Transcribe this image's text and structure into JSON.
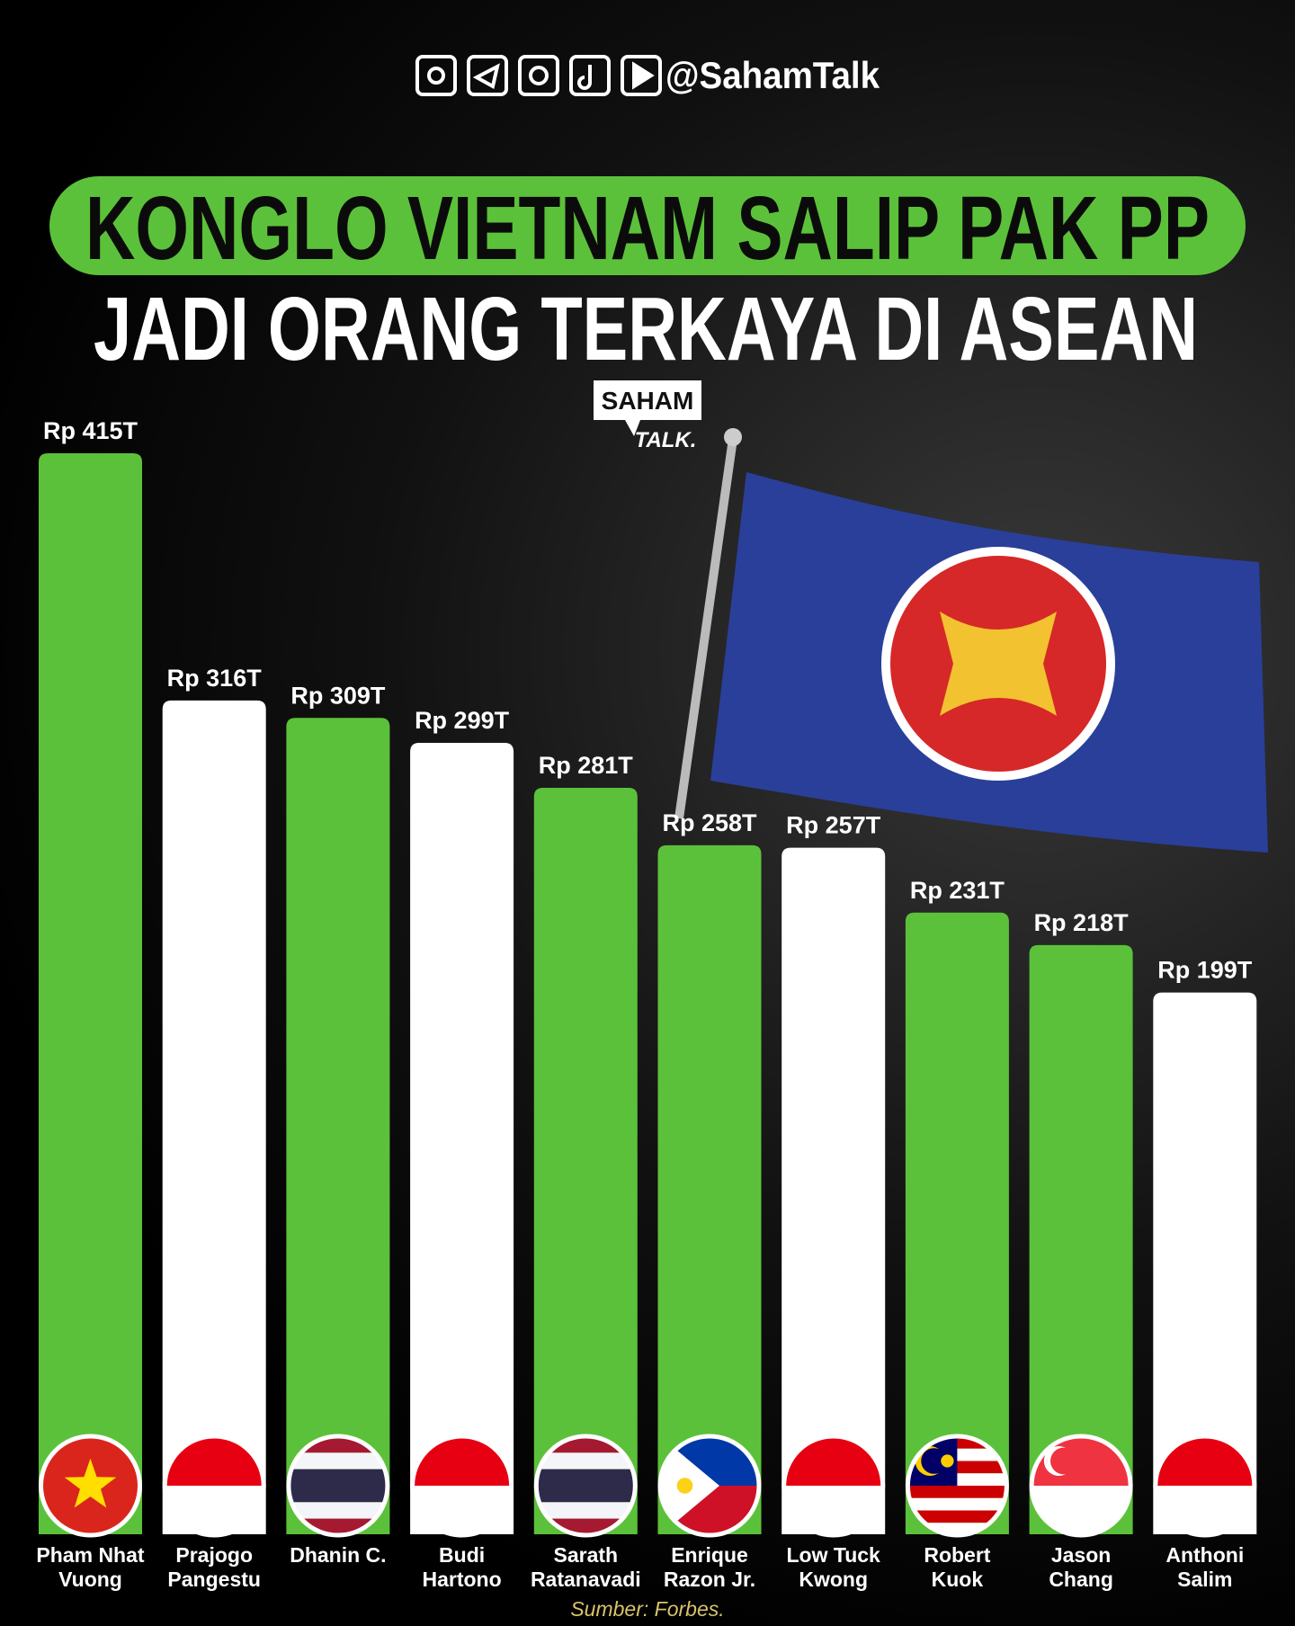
{
  "header": {
    "handle": "@SahamTalk"
  },
  "logo": {
    "line1": "SAHAM",
    "line2": "TALK."
  },
  "chart_data": {
    "type": "bar",
    "title": "KONGLO VIETNAM SALIP PAK PP",
    "subtitle": "JADI ORANG TERKAYA DI ASEAN",
    "categories": [
      "Pham Nhat Vuong",
      "Prajogo Pangestu",
      "Dhanin C.",
      "Budi Hartono",
      "Sarath Ratanavadi",
      "Enrique Razon Jr.",
      "Low Tuck Kwong",
      "Robert Kuok",
      "Jason Chang",
      "Anthoni Salim"
    ],
    "values": [
      415,
      316,
      309,
      299,
      281,
      258,
      257,
      231,
      218,
      199
    ],
    "value_labels": [
      "Rp 415T",
      "Rp 316T",
      "Rp 309T",
      "Rp 299T",
      "Rp 281T",
      "Rp 258T",
      "Rp 257T",
      "Rp 231T",
      "Rp 218T",
      "Rp 199T"
    ],
    "colors": [
      "#5cc13a",
      "#ffffff",
      "#5cc13a",
      "#ffffff",
      "#5cc13a",
      "#5cc13a",
      "#ffffff",
      "#5cc13a",
      "#5cc13a",
      "#ffffff"
    ],
    "ylim": [
      -18,
      415
    ],
    "source": "Sumber: Forbes."
  }
}
